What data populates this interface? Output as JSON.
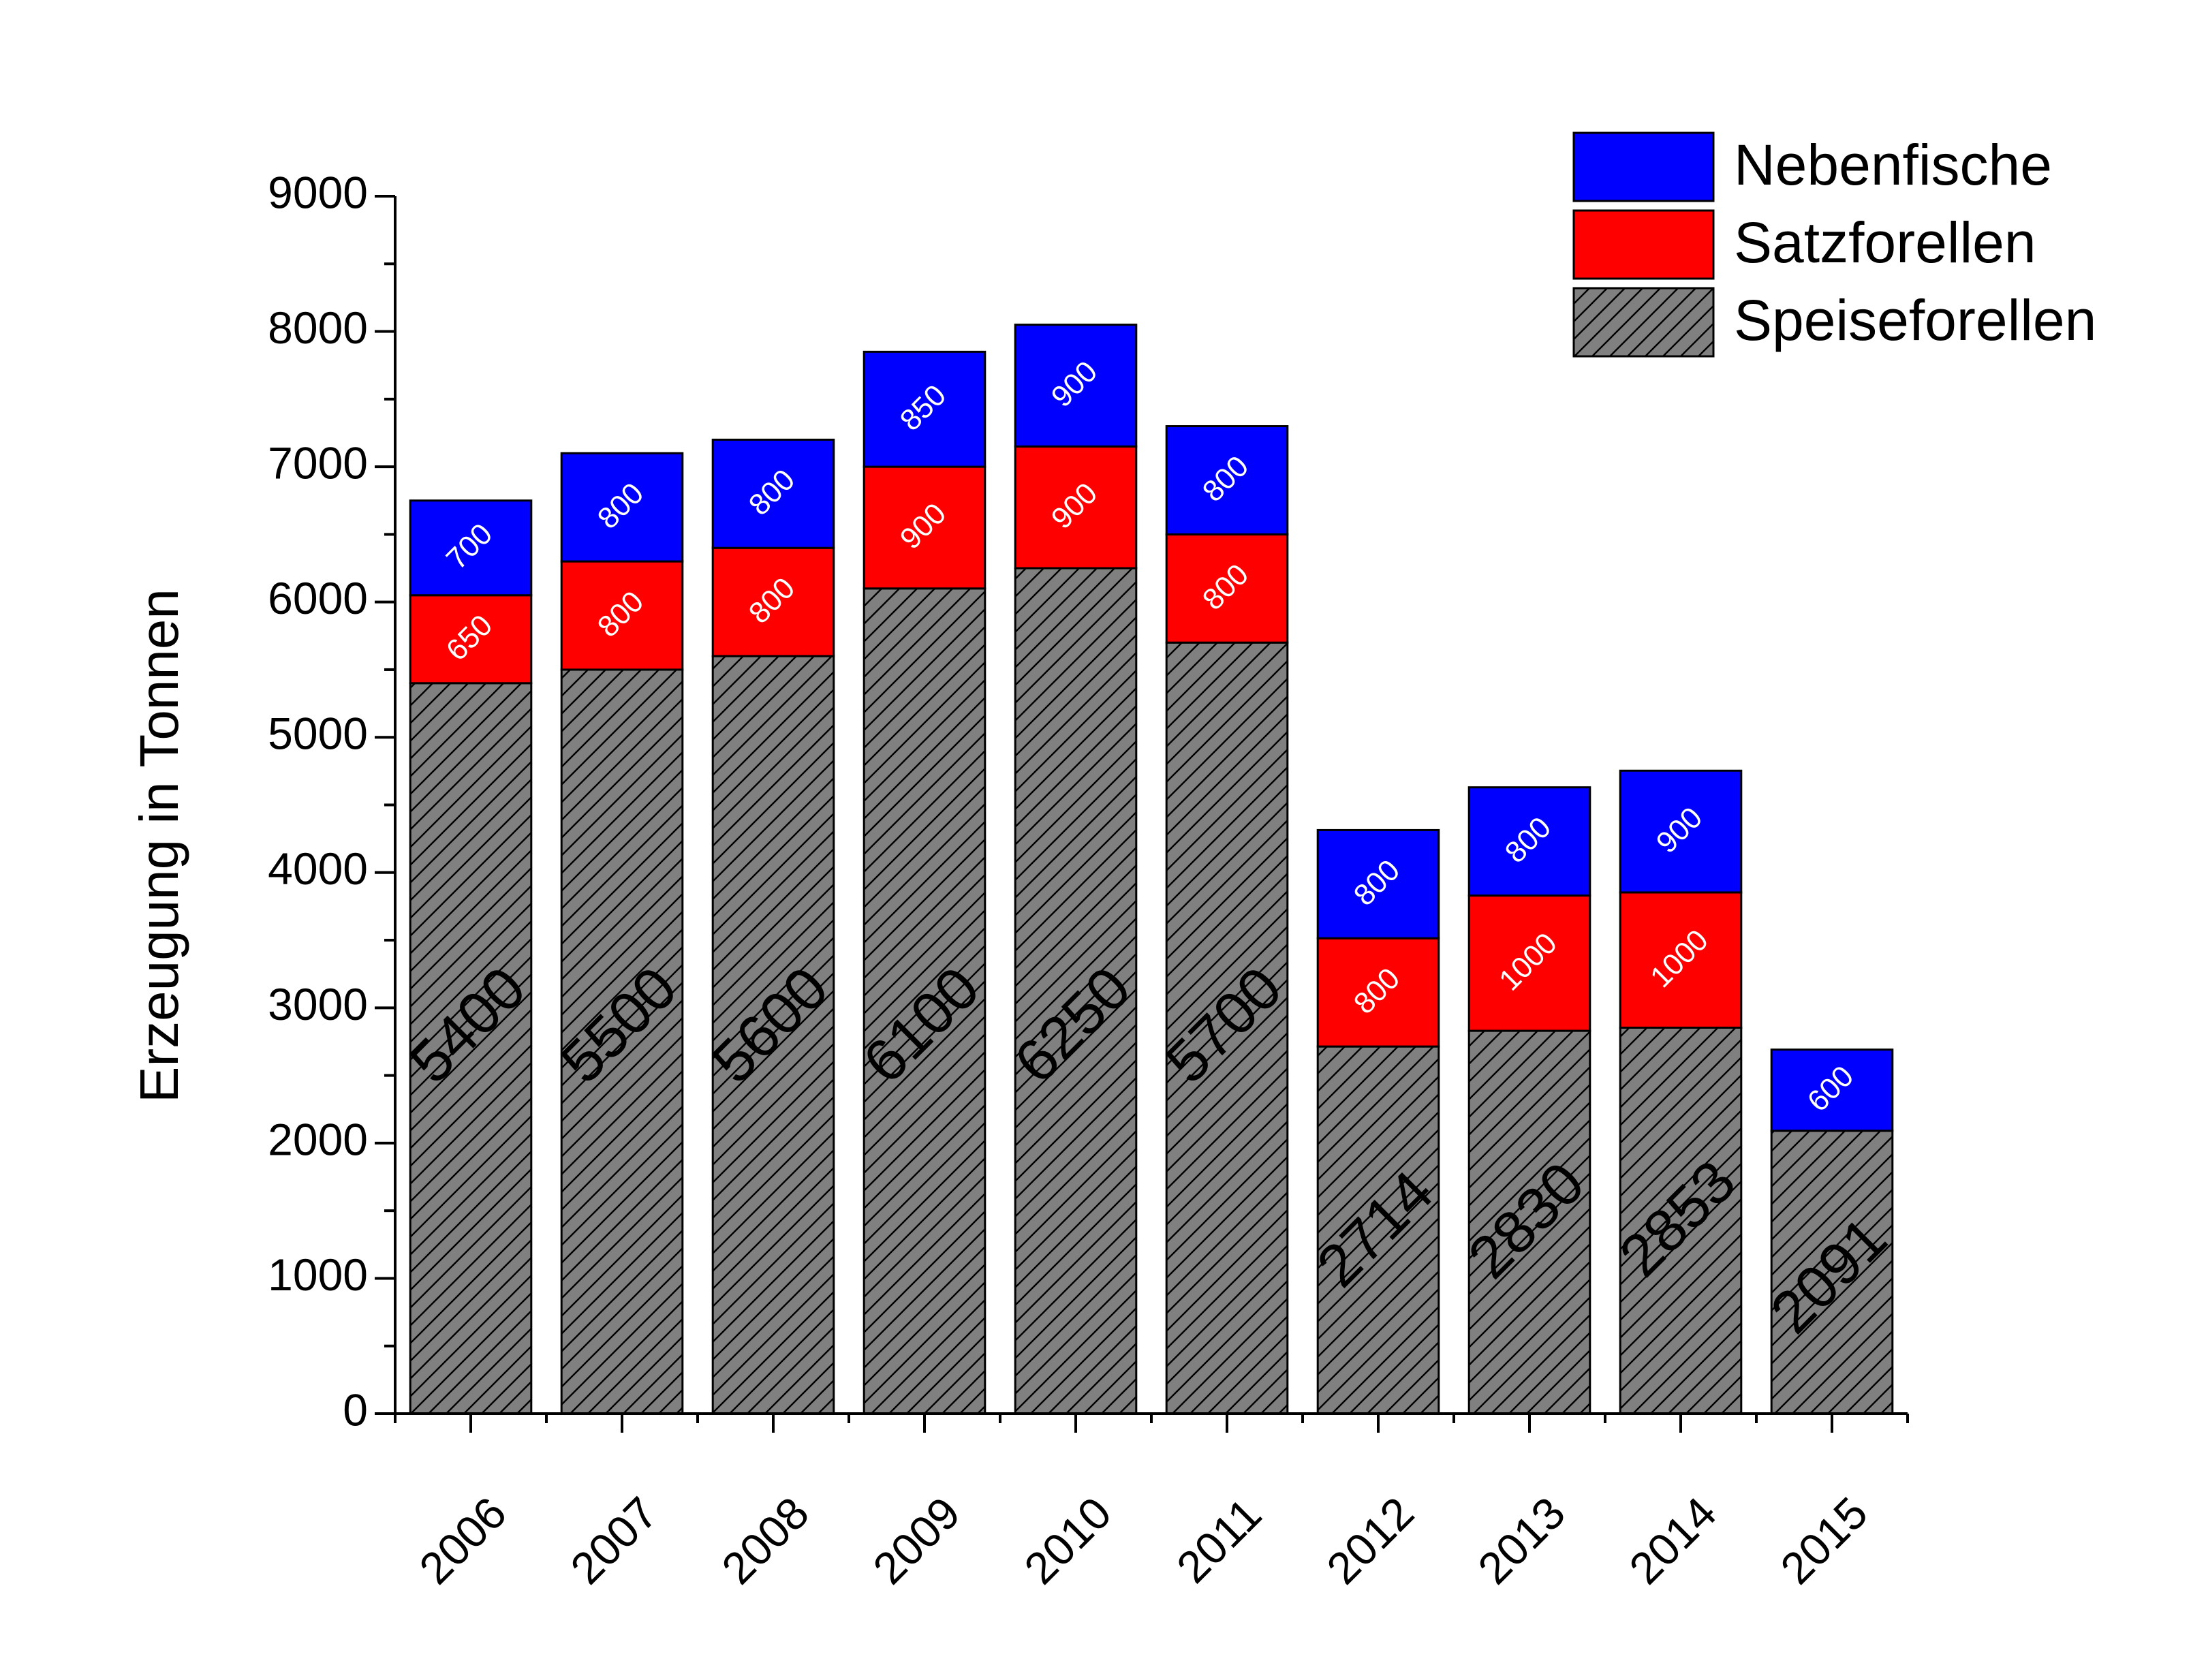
{
  "chart_data": {
    "type": "bar",
    "stacked": true,
    "categories": [
      "2006",
      "2007",
      "2008",
      "2009",
      "2010",
      "2011",
      "2012",
      "2013",
      "2014",
      "2015"
    ],
    "series": [
      {
        "name": "Speiseforellen",
        "values": [
          5400,
          5500,
          5600,
          6100,
          6250,
          5700,
          2714,
          2830,
          2853,
          2091
        ],
        "labels": [
          "5400",
          "5500",
          "5600",
          "6100",
          "6250",
          "5700",
          "2714",
          "2830",
          "2853",
          "2091"
        ],
        "color": "#808080",
        "pattern": "hatched"
      },
      {
        "name": "Satzforellen",
        "values": [
          650,
          800,
          800,
          900,
          900,
          800,
          800,
          1000,
          1000,
          0
        ],
        "labels": [
          "650",
          "800",
          "800",
          "900",
          "900",
          "800",
          "800",
          "1000",
          "1000",
          ""
        ],
        "color": "#ff0000"
      },
      {
        "name": "Nebenfische",
        "values": [
          700,
          800,
          800,
          850,
          900,
          800,
          800,
          800,
          900,
          600
        ],
        "labels": [
          "700",
          "800",
          "800",
          "850",
          "900",
          "800",
          "800",
          "800",
          "900",
          "600"
        ],
        "color": "#0000ff"
      }
    ],
    "xlabel": "",
    "ylabel": "Erzeugung in Tonnen",
    "ylim": [
      0,
      9000
    ],
    "yticks": [
      "0",
      "1000",
      "2000",
      "3000",
      "4000",
      "5000",
      "6000",
      "7000",
      "8000",
      "9000"
    ],
    "grid": false,
    "legend_position": "top-right",
    "legend_order": [
      "Nebenfische",
      "Satzforellen",
      "Speiseforellen"
    ]
  }
}
